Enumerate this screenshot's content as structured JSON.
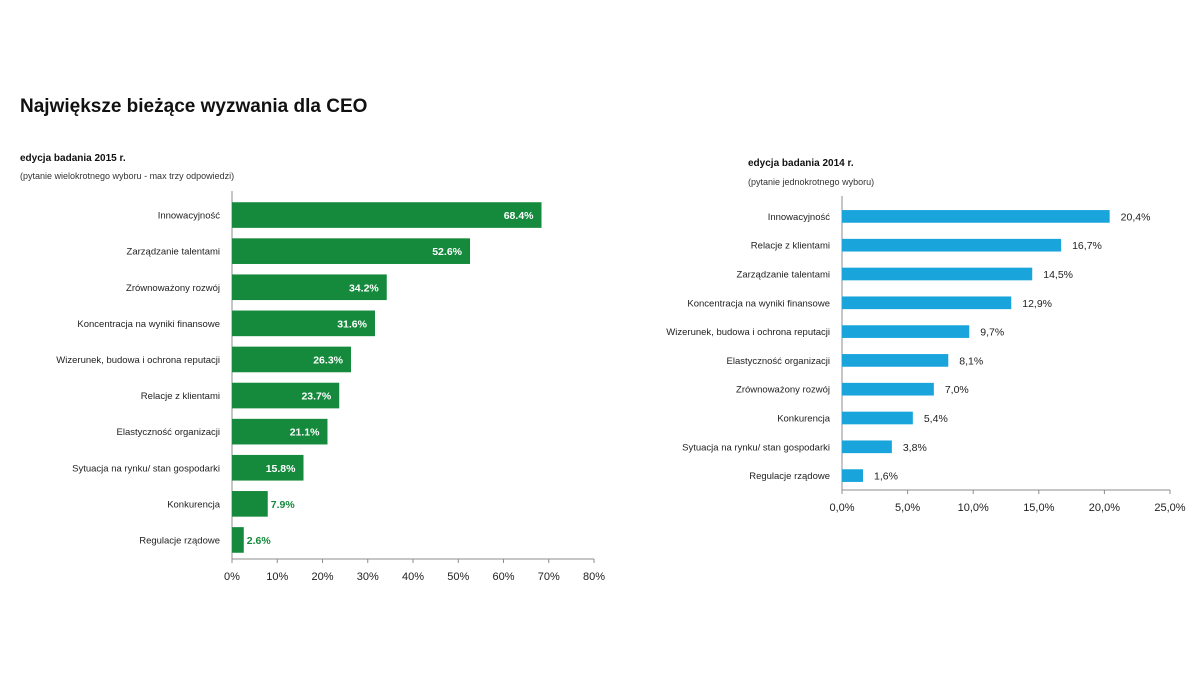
{
  "title": "Największe bieżące wyzwania dla CEO",
  "colors": {
    "green": "#15893c",
    "blue": "#19a5dc",
    "axis": "#8c8c8c",
    "label_text": "#222222",
    "value_outside_green": "#15893c"
  },
  "chart_data": [
    {
      "type": "bar",
      "orientation": "horizontal",
      "title": "edycja badania 2015 r.",
      "subtitle": "(pytanie wielokrotnego wyboru - max trzy odpowiedzi)",
      "categories": [
        "Innowacyjność",
        "Zarządzanie talentami",
        "Zrównoważony rozwój",
        "Koncentracja na wyniki finansowe",
        "Wizerunek, budowa i ochrona reputacji",
        "Relacje z klientami",
        "Elastyczność organizacji",
        "Sytuacja na rynku/ stan gospodarki",
        "Konkurencja",
        "Regulacje rządowe"
      ],
      "values": [
        68.4,
        52.6,
        34.2,
        31.6,
        26.3,
        23.7,
        21.1,
        15.8,
        7.9,
        2.6
      ],
      "value_labels": [
        "68.4%",
        "52.6%",
        "34.2%",
        "31.6%",
        "26.3%",
        "23.7%",
        "21.1%",
        "15.8%",
        "7.9%",
        "2.6%"
      ],
      "xlim": [
        0,
        80
      ],
      "ticks": [
        0,
        10,
        20,
        30,
        40,
        50,
        60,
        70,
        80
      ],
      "tick_labels": [
        "0%",
        "10%",
        "20%",
        "30%",
        "40%",
        "50%",
        "60%",
        "70%",
        "80%"
      ],
      "grid": false,
      "xlabel": "",
      "ylabel": ""
    },
    {
      "type": "bar",
      "orientation": "horizontal",
      "title": "edycja badania 2014 r.",
      "subtitle": "(pytanie jednokrotnego wyboru)",
      "categories": [
        "Innowacyjność",
        "Relacje z klientami",
        "Zarządzanie talentami",
        "Koncentracja na wyniki finansowe",
        "Wizerunek, budowa i ochrona reputacji",
        "Elastyczność organizacji",
        "Zrównoważony rozwój",
        "Konkurencja",
        "Sytuacja na rynku/ stan gospodarki",
        "Regulacje rządowe"
      ],
      "values": [
        20.4,
        16.7,
        14.5,
        12.9,
        9.7,
        8.1,
        7.0,
        5.4,
        3.8,
        1.6
      ],
      "value_labels": [
        "20,4%",
        "16,7%",
        "14,5%",
        "12,9%",
        "9,7%",
        "8,1%",
        "7,0%",
        "5,4%",
        "3,8%",
        "1,6%"
      ],
      "xlim": [
        0,
        25
      ],
      "ticks": [
        0,
        5,
        10,
        15,
        20,
        25
      ],
      "tick_labels": [
        "0,0%",
        "5,0%",
        "10,0%",
        "15,0%",
        "20,0%",
        "25,0%"
      ],
      "grid": false,
      "xlabel": "",
      "ylabel": ""
    }
  ]
}
